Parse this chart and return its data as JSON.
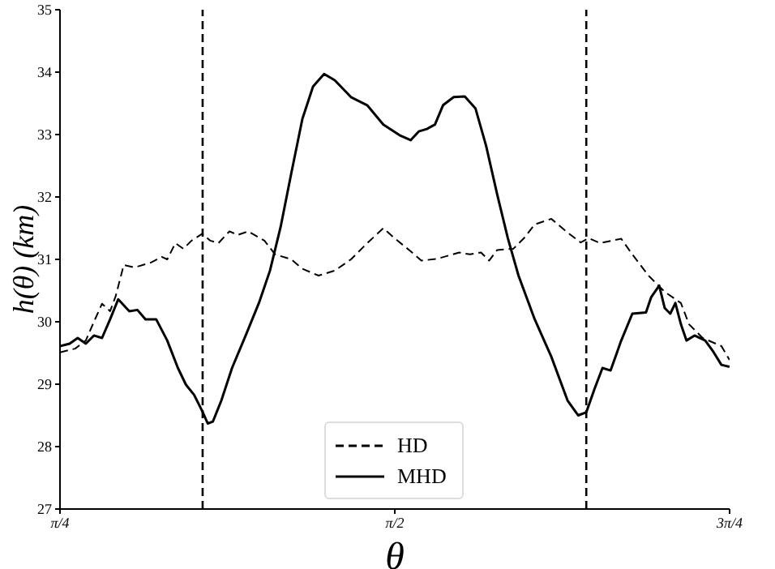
{
  "chart_data": {
    "type": "line",
    "xlabel": "θ",
    "ylabel": "h(θ)  (km)",
    "xlim": [
      0.7854,
      2.3562
    ],
    "xticks": [
      {
        "value": 0.7854,
        "label": "π/4"
      },
      {
        "value": 1.5708,
        "label": "π/2"
      },
      {
        "value": 2.3562,
        "label": "3π/4"
      }
    ],
    "ylim": [
      27,
      35
    ],
    "yticks": [
      27,
      28,
      29,
      30,
      31,
      32,
      33,
      34,
      35
    ],
    "grid": false,
    "legend": "bottom",
    "marker": "none",
    "ref_lines": [
      {
        "axis": "x",
        "value": 1.12,
        "color": "#000000",
        "line_style": "dashed"
      },
      {
        "axis": "x",
        "value": 2.02,
        "color": "#000000",
        "line_style": "dashed"
      }
    ],
    "series": [
      {
        "name": "HD",
        "color": "#000000",
        "line_style": "dashed",
        "x": [
          0.7854,
          0.821,
          0.846,
          0.865,
          0.884,
          0.903,
          0.916,
          0.935,
          0.96,
          0.999,
          1.024,
          1.037,
          1.056,
          1.075,
          1.094,
          1.119,
          1.138,
          1.157,
          1.183,
          1.202,
          1.227,
          1.265,
          1.29,
          1.328,
          1.354,
          1.392,
          1.43,
          1.468,
          1.506,
          1.544,
          1.57,
          1.608,
          1.633,
          1.671,
          1.722,
          1.747,
          1.773,
          1.792,
          1.811,
          1.849,
          1.874,
          1.899,
          1.938,
          1.976,
          2.007,
          2.026,
          2.052,
          2.102,
          2.128,
          2.166,
          2.204,
          2.242,
          2.261,
          2.293,
          2.337,
          2.356
        ],
        "values": [
          29.51,
          29.57,
          29.7,
          30.0,
          30.29,
          30.17,
          30.41,
          30.91,
          30.87,
          30.95,
          31.04,
          31.0,
          31.26,
          31.17,
          31.3,
          31.41,
          31.3,
          31.26,
          31.45,
          31.39,
          31.45,
          31.3,
          31.08,
          31.0,
          30.85,
          30.74,
          30.82,
          31.0,
          31.26,
          31.5,
          31.34,
          31.13,
          30.98,
          31.01,
          31.11,
          31.08,
          31.11,
          30.98,
          31.15,
          31.17,
          31.34,
          31.56,
          31.65,
          31.43,
          31.27,
          31.34,
          31.26,
          31.33,
          31.08,
          30.74,
          30.48,
          30.3,
          29.96,
          29.74,
          29.61,
          29.39
        ]
      },
      {
        "name": "MHD",
        "color": "#000000",
        "line_style": "solid",
        "x": [
          0.7854,
          0.808,
          0.827,
          0.846,
          0.865,
          0.884,
          0.903,
          0.922,
          0.948,
          0.967,
          0.986,
          1.011,
          1.037,
          1.062,
          1.081,
          1.1,
          1.119,
          1.132,
          1.144,
          1.164,
          1.189,
          1.221,
          1.252,
          1.278,
          1.303,
          1.328,
          1.354,
          1.379,
          1.405,
          1.43,
          1.468,
          1.506,
          1.544,
          1.582,
          1.608,
          1.627,
          1.646,
          1.665,
          1.684,
          1.709,
          1.735,
          1.76,
          1.785,
          1.811,
          1.836,
          1.861,
          1.899,
          1.938,
          1.976,
          2.001,
          2.02,
          2.039,
          2.058,
          2.077,
          2.102,
          2.128,
          2.16,
          2.172,
          2.191,
          2.204,
          2.217,
          2.229,
          2.242,
          2.255,
          2.274,
          2.299,
          2.318,
          2.337,
          2.356
        ],
        "values": [
          29.61,
          29.65,
          29.74,
          29.65,
          29.78,
          29.74,
          30.04,
          30.36,
          30.17,
          30.19,
          30.04,
          30.04,
          29.7,
          29.26,
          28.99,
          28.83,
          28.57,
          28.37,
          28.4,
          28.74,
          29.26,
          29.78,
          30.3,
          30.82,
          31.52,
          32.38,
          33.25,
          33.77,
          33.97,
          33.87,
          33.6,
          33.47,
          33.16,
          32.99,
          32.91,
          33.05,
          33.09,
          33.16,
          33.47,
          33.6,
          33.61,
          33.42,
          32.82,
          32.04,
          31.34,
          30.74,
          30.04,
          29.44,
          28.74,
          28.5,
          28.55,
          28.92,
          29.26,
          29.22,
          29.7,
          30.13,
          30.15,
          30.39,
          30.58,
          30.22,
          30.13,
          30.3,
          29.96,
          29.7,
          29.78,
          29.7,
          29.52,
          29.31,
          29.28
        ]
      }
    ]
  }
}
